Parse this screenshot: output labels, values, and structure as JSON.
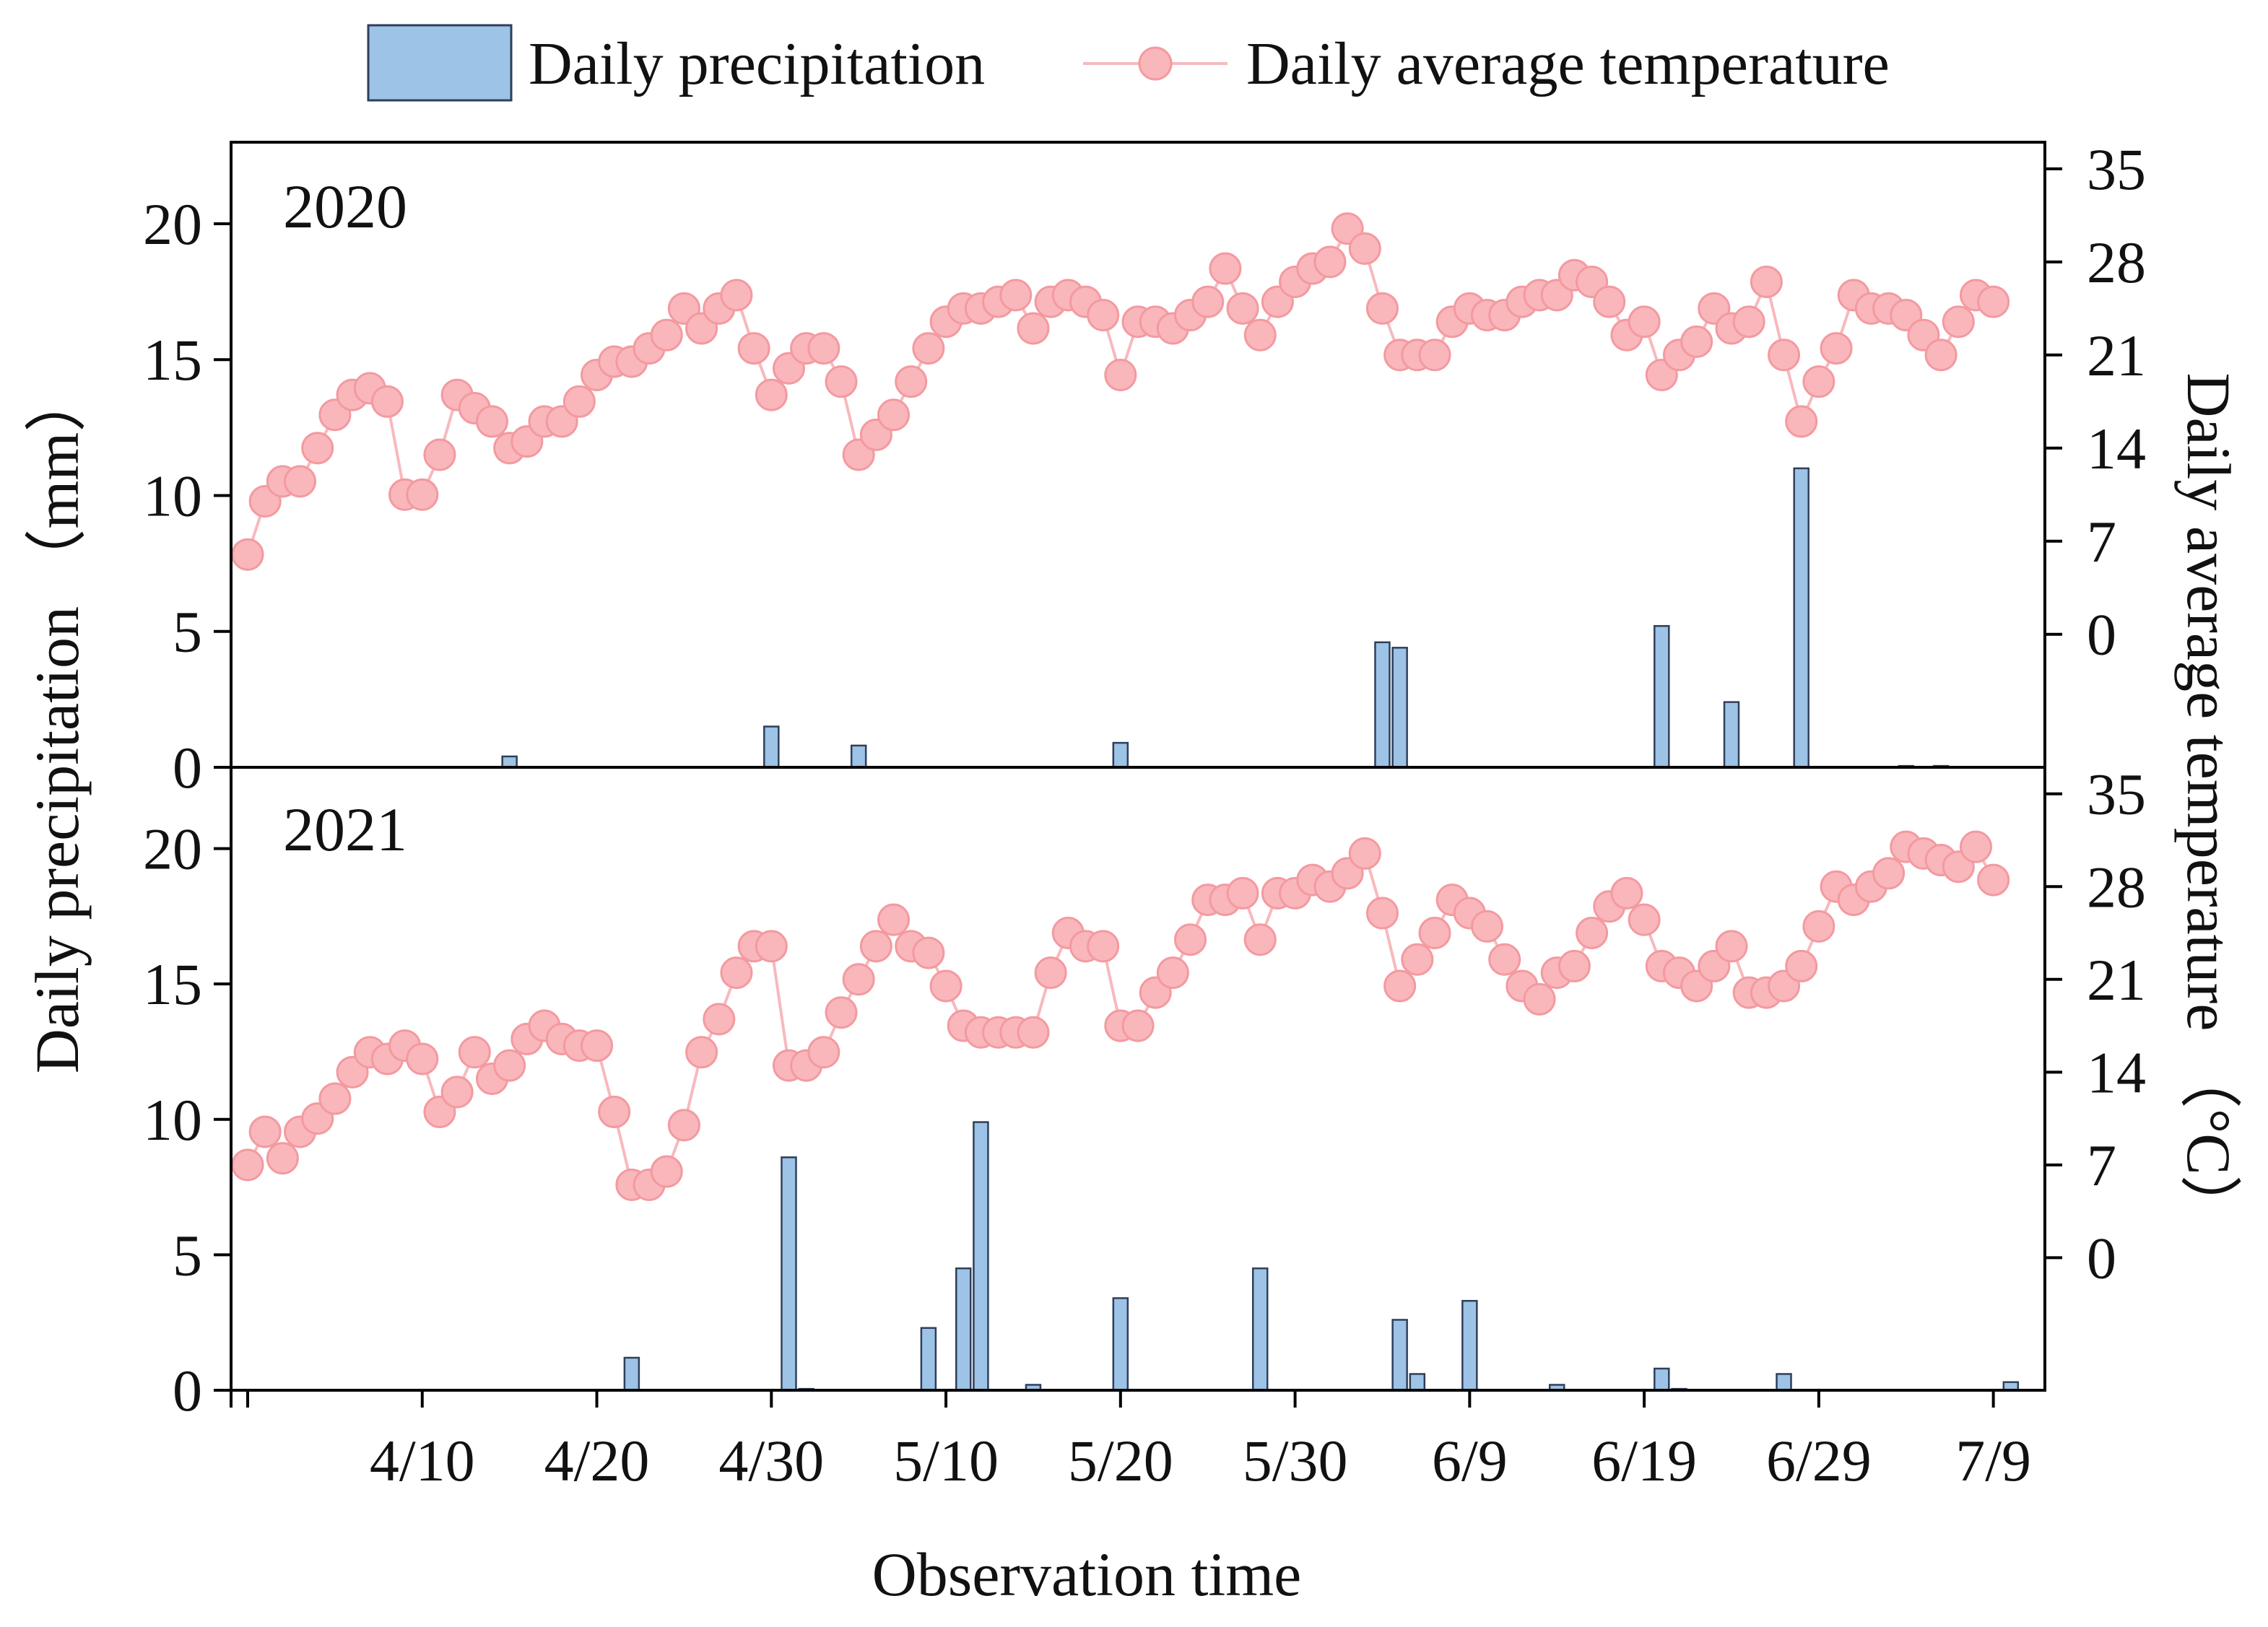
{
  "chart_data": {
    "type": "bar+line",
    "xlabel": "Observation time",
    "ylabel_left": "Daily precipitation （mm）",
    "ylabel_right": "Daily average temperature （°C）",
    "x_tick_labels": [
      "4/10",
      "4/20",
      "4/30",
      "5/10",
      "5/20",
      "5/30",
      "6/9",
      "6/19",
      "6/29",
      "7/9"
    ],
    "x_tick_day_index": [
      10,
      20,
      30,
      40,
      50,
      60,
      70,
      80,
      90,
      100
    ],
    "x_range_day_index": [
      0,
      102
    ],
    "left_ylim": [
      0,
      23
    ],
    "left_yticks": [
      0,
      5,
      10,
      15,
      20
    ],
    "right_ylim": [
      -10,
      37
    ],
    "right_yticks": [
      0,
      7,
      14,
      21,
      28,
      35
    ],
    "colors": {
      "bar_fill": "#9dc3e6",
      "bar_stroke": "#2f3f5a",
      "line": "#f7b9bd",
      "marker_fill": "#f9b7bb",
      "marker_stroke": "#f39aa0",
      "axis": "#000000"
    },
    "legend": [
      {
        "name": "Daily precipitation",
        "kind": "bar"
      },
      {
        "name": "Daily average temperature",
        "kind": "line"
      }
    ],
    "panels": [
      {
        "label": "2020",
        "precipitation": [
          [
            15,
            0.4
          ],
          [
            30,
            1.5
          ],
          [
            35,
            0.8
          ],
          [
            50,
            0.9
          ],
          [
            65,
            4.6
          ],
          [
            66,
            4.4
          ],
          [
            81,
            5.2
          ],
          [
            85,
            2.4
          ],
          [
            89,
            11
          ],
          [
            95,
            0.05
          ],
          [
            97,
            0.05
          ]
        ],
        "temperature": [
          6,
          10,
          11.5,
          11.5,
          14,
          16.5,
          18,
          18.5,
          17.5,
          10.5,
          10.5,
          13.5,
          18,
          17,
          16,
          14,
          14.5,
          16,
          16,
          17.5,
          19.5,
          20.5,
          20.5,
          21.5,
          22.5,
          24.5,
          23,
          24.5,
          25.5,
          21.5,
          18,
          20,
          21.5,
          21.5,
          19,
          13.5,
          15,
          16.5,
          19,
          21.5,
          23.5,
          24.5,
          24.5,
          25,
          25.5,
          23,
          25,
          25.5,
          25,
          24,
          19.5,
          23.5,
          23.5,
          23,
          24,
          25,
          27.5,
          24.5,
          22.5,
          25,
          26.5,
          27.5,
          28,
          30.5,
          29,
          24.5,
          21,
          21,
          21,
          23.5,
          24.5,
          24,
          24,
          25,
          25.5,
          25.5,
          27,
          26.5,
          25,
          22.5,
          23.5,
          19.5,
          21,
          22,
          24.5,
          23,
          23.5,
          26.5,
          21,
          16,
          19,
          21.5,
          25.5,
          24.5,
          24.5,
          24,
          22.5,
          21,
          23.5,
          25.5,
          25
        ]
      },
      {
        "label": "2021",
        "precipitation": [
          [
            22,
            1.2
          ],
          [
            31,
            8.6
          ],
          [
            32,
            0.05
          ],
          [
            39,
            2.3
          ],
          [
            41,
            4.5
          ],
          [
            42,
            9.9
          ],
          [
            45,
            0.2
          ],
          [
            50,
            3.4
          ],
          [
            58,
            4.5
          ],
          [
            66,
            2.6
          ],
          [
            67,
            0.6
          ],
          [
            70,
            3.3
          ],
          [
            75,
            0.2
          ],
          [
            81,
            0.8
          ],
          [
            82,
            0.05
          ],
          [
            88,
            0.6
          ],
          [
            101,
            0.3
          ]
        ],
        "temperature": [
          7,
          9.5,
          7.5,
          9.5,
          10.5,
          12,
          14,
          15.5,
          15,
          16,
          15,
          11,
          12.5,
          15.5,
          13.5,
          14.5,
          16.5,
          17.5,
          16.5,
          16,
          16,
          11,
          5.5,
          5.5,
          6.5,
          10,
          15.5,
          18,
          21.5,
          23.5,
          23.5,
          14.5,
          14.5,
          15.5,
          18.5,
          21,
          23.5,
          25.5,
          23.5,
          23,
          20.5,
          17.5,
          17,
          17,
          17,
          17,
          21.5,
          24.5,
          23.5,
          23.5,
          17.5,
          17.5,
          20,
          21.5,
          24,
          27,
          27,
          27.5,
          24,
          27.5,
          27.5,
          28.5,
          28,
          29,
          30.5,
          26,
          20.5,
          22.5,
          24.5,
          27,
          26,
          25,
          22.5,
          20.5,
          19.5,
          21.5,
          22,
          24.5,
          26.5,
          27.5,
          25.5,
          22,
          21.5,
          20.5,
          22,
          23.5,
          20,
          20,
          20.5,
          22,
          25,
          28,
          27,
          28,
          29,
          31,
          30.5,
          30,
          29.5,
          31,
          28.5
        ]
      }
    ]
  }
}
